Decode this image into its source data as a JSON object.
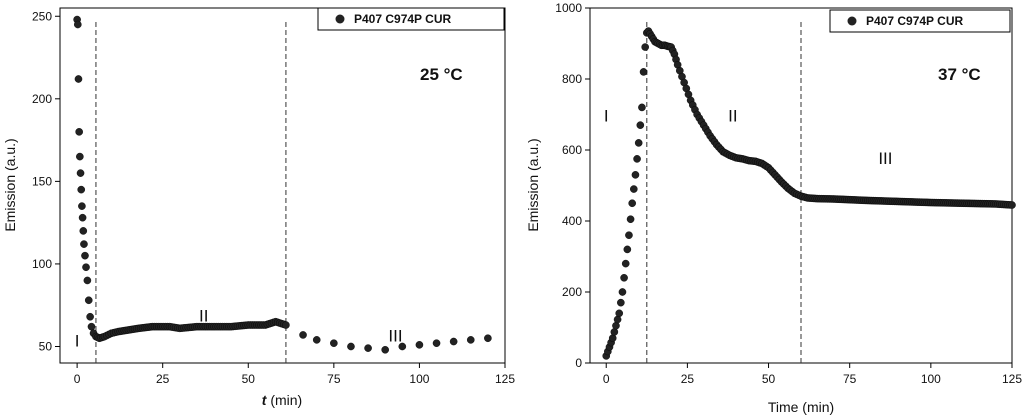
{
  "chart_data": [
    {
      "type": "scatter",
      "temperature_label": "25 °C",
      "xlabel_italic": "t",
      "xlabel_rest": " (min)",
      "ylabel": "Emission (a.u.)",
      "xlim": [
        -5,
        125
      ],
      "ylim": [
        40,
        255
      ],
      "xticks": [
        0,
        25,
        50,
        75,
        100,
        125
      ],
      "yticks": [
        50,
        100,
        150,
        200,
        250
      ],
      "legend": "P407 C974P CUR",
      "legend_position": "top-right",
      "marker_color": "#222222",
      "boundaries": [
        5.5,
        61
      ],
      "regions": [
        {
          "label": "I",
          "x": 0,
          "y": 50
        },
        {
          "label": "II",
          "x": 37,
          "y": 65
        },
        {
          "label": "III",
          "x": 93,
          "y": 53
        }
      ],
      "anchors": [
        [
          0,
          248
        ],
        [
          0.2,
          245
        ],
        [
          0.4,
          212
        ],
        [
          0.6,
          180
        ],
        [
          0.8,
          165
        ],
        [
          1.0,
          155
        ],
        [
          1.2,
          145
        ],
        [
          1.4,
          135
        ],
        [
          1.6,
          128
        ],
        [
          1.8,
          120
        ],
        [
          2.0,
          112
        ],
        [
          2.3,
          105
        ],
        [
          2.6,
          98
        ],
        [
          3.0,
          90
        ],
        [
          3.4,
          78
        ],
        [
          3.8,
          68
        ],
        [
          4.2,
          62
        ],
        [
          4.8,
          58
        ],
        [
          5.5,
          56
        ],
        [
          6.5,
          55
        ],
        [
          8,
          56
        ],
        [
          10,
          58
        ],
        [
          12,
          59
        ],
        [
          15,
          60
        ],
        [
          18,
          61
        ],
        [
          22,
          62
        ],
        [
          27,
          62
        ],
        [
          30,
          61
        ],
        [
          35,
          62
        ],
        [
          40,
          62
        ],
        [
          45,
          62
        ],
        [
          50,
          63
        ],
        [
          55,
          63
        ],
        [
          58,
          65
        ],
        [
          61,
          63
        ]
      ],
      "sparse_points": [
        [
          66,
          57
        ],
        [
          70,
          54
        ],
        [
          75,
          52
        ],
        [
          80,
          50
        ],
        [
          85,
          49
        ],
        [
          90,
          48
        ],
        [
          95,
          50
        ],
        [
          100,
          51
        ],
        [
          105,
          52
        ],
        [
          110,
          53
        ],
        [
          115,
          54
        ],
        [
          120,
          55
        ]
      ]
    },
    {
      "type": "scatter",
      "temperature_label": "37 °C",
      "xlabel": "Time (min)",
      "ylabel": "Emission (a.u.)",
      "xlim": [
        -5,
        125
      ],
      "ylim": [
        0,
        1000
      ],
      "xticks": [
        0,
        25,
        50,
        75,
        100,
        125
      ],
      "yticks": [
        0,
        200,
        400,
        600,
        800,
        1000
      ],
      "legend": "P407 C974P CUR",
      "legend_position": "top-right",
      "marker_color": "#222222",
      "boundaries": [
        12.5,
        60
      ],
      "regions": [
        {
          "label": "I",
          "x": 0,
          "y": 680
        },
        {
          "label": "II",
          "x": 39,
          "y": 680
        },
        {
          "label": "III",
          "x": 86,
          "y": 560
        }
      ],
      "anchors": [
        [
          0,
          20
        ],
        [
          1,
          45
        ],
        [
          2,
          70
        ],
        [
          3,
          105
        ],
        [
          4,
          140
        ],
        [
          5,
          200
        ],
        [
          6,
          280
        ],
        [
          7,
          360
        ],
        [
          8,
          450
        ],
        [
          9,
          530
        ],
        [
          10,
          620
        ],
        [
          11,
          720
        ],
        [
          11.5,
          820
        ],
        [
          12,
          890
        ],
        [
          12.5,
          930
        ],
        [
          13,
          935
        ],
        [
          14,
          920
        ],
        [
          15,
          905
        ],
        [
          16,
          900
        ],
        [
          17,
          895
        ],
        [
          18,
          895
        ],
        [
          19,
          892
        ],
        [
          20,
          890
        ],
        [
          21,
          870
        ],
        [
          22,
          840
        ],
        [
          24,
          790
        ],
        [
          26,
          740
        ],
        [
          28,
          700
        ],
        [
          30,
          670
        ],
        [
          32,
          640
        ],
        [
          34,
          615
        ],
        [
          36,
          595
        ],
        [
          38,
          585
        ],
        [
          40,
          578
        ],
        [
          42,
          575
        ],
        [
          44,
          570
        ],
        [
          46,
          568
        ],
        [
          48,
          562
        ],
        [
          50,
          550
        ],
        [
          52,
          530
        ],
        [
          54,
          510
        ],
        [
          56,
          492
        ],
        [
          58,
          478
        ],
        [
          60,
          470
        ],
        [
          62,
          465
        ],
        [
          65,
          463
        ],
        [
          70,
          462
        ],
        [
          80,
          458
        ],
        [
          90,
          455
        ],
        [
          100,
          452
        ],
        [
          110,
          450
        ],
        [
          120,
          448
        ],
        [
          125,
          445
        ]
      ],
      "sparse_points": []
    }
  ]
}
